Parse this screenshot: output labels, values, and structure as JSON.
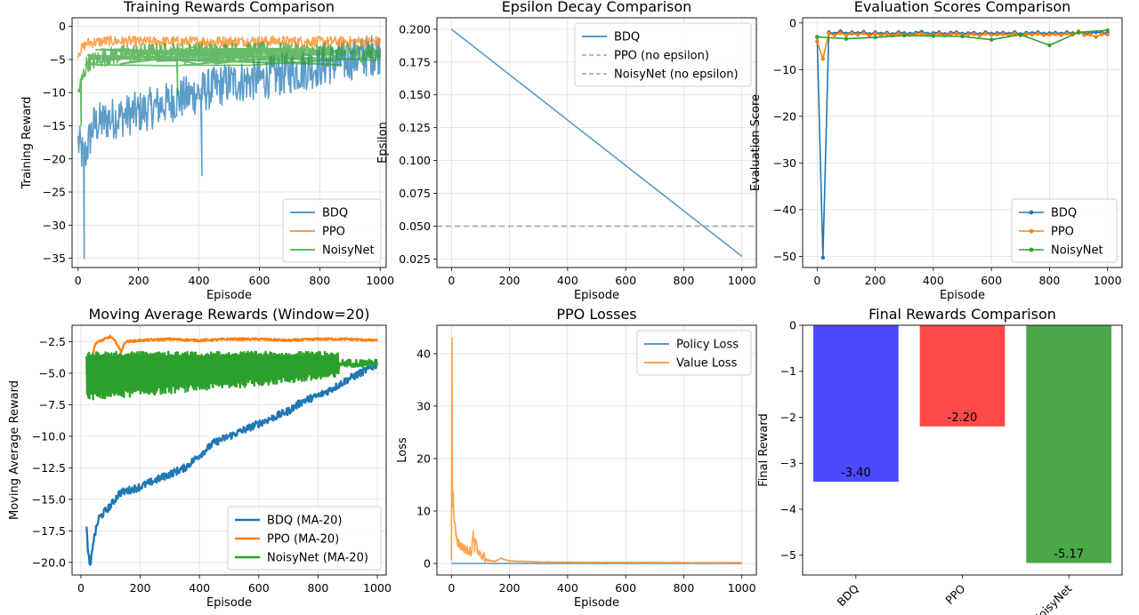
{
  "colors": {
    "blue": "#1f77b4",
    "orange": "#ff7f0e",
    "green": "#2ca02c",
    "gray": "#a0a0a0",
    "bar_blue": "#4a4aff",
    "bar_red": "#ff4a4a",
    "bar_green": "#4aa84a",
    "grid": "#e0e0e0"
  },
  "chart_data": [
    {
      "id": "training",
      "type": "line",
      "title": "Training Rewards Comparison",
      "xlabel": "Episode",
      "ylabel": "Training Reward",
      "xlim": [
        -20,
        1020
      ],
      "ylim": [
        -36.4,
        1.3
      ],
      "xticks": [
        0,
        200,
        400,
        600,
        800,
        1000
      ],
      "yticks": [
        0,
        -5,
        -10,
        -15,
        -20,
        -25,
        -30,
        -35
      ],
      "grid": true,
      "legend": "lower right",
      "series": [
        {
          "name": "BDQ",
          "color": "blue",
          "x": [
            0,
            20,
            50,
            100,
            150,
            200,
            300,
            400,
            500,
            600,
            700,
            800,
            900,
            1000
          ],
          "y": [
            -17.5,
            -20,
            -15,
            -14,
            -13.5,
            -13,
            -11.5,
            -10,
            -8.5,
            -8,
            -7,
            -6,
            -5,
            -4
          ],
          "noise": 3.2,
          "spikes": [
            [
              20,
              -35
            ],
            [
              410,
              -22.5
            ]
          ]
        },
        {
          "name": "PPO",
          "color": "orange",
          "x": [
            0,
            30,
            100,
            200,
            400,
            600,
            800,
            1000
          ],
          "y": [
            -4,
            -2.5,
            -2.2,
            -2.3,
            -2.3,
            -2.2,
            -2.3,
            -2.3
          ],
          "noise": 0.8,
          "spikes": []
        },
        {
          "name": "NoisyNet",
          "color": "green",
          "x": [
            0,
            30,
            100,
            200,
            400,
            600,
            800,
            1000
          ],
          "y": [
            -10,
            -5.5,
            -4.5,
            -4,
            -3.8,
            -3.8,
            -3.9,
            -4
          ],
          "noise": 1.4,
          "spikes": [
            [
              10,
              -15
            ],
            [
              330,
              -10.5
            ]
          ]
        }
      ]
    },
    {
      "id": "epsilon",
      "type": "line",
      "title": "Epsilon Decay Comparison",
      "xlabel": "Episode",
      "ylabel": "Epsilon",
      "xlim": [
        -50,
        1050
      ],
      "ylim": [
        0.0185,
        0.2087
      ],
      "xticks": [
        0,
        200,
        400,
        600,
        800,
        1000
      ],
      "yticks": [
        0.2,
        0.175,
        0.15,
        0.125,
        0.1,
        0.075,
        0.05,
        0.025
      ],
      "ytick_labels": [
        "0.200",
        "0.175",
        "0.150",
        "0.125",
        "0.100",
        "0.075",
        "0.050",
        "0.025"
      ],
      "grid": true,
      "legend": "upper right",
      "series": [
        {
          "name": "BDQ",
          "color": "blue",
          "x": [
            0,
            1000
          ],
          "y": [
            0.2,
            0.027
          ]
        },
        {
          "name": "PPO (no epsilon)",
          "color": "gray",
          "dashed": true,
          "x": [
            -50,
            1050
          ],
          "y": [
            0.05,
            0.05
          ]
        },
        {
          "name": "NoisyNet (no epsilon)",
          "color": "gray",
          "dashed": true,
          "x": [
            -50,
            1050
          ],
          "y": [
            0.05,
            0.05
          ]
        }
      ]
    },
    {
      "id": "evaluation",
      "type": "line",
      "title": "Evaluation Scores Comparison",
      "xlabel": "Episode",
      "ylabel": "Evaluation Score",
      "xlim": [
        -50,
        1050
      ],
      "ylim": [
        -52.4,
        1.1
      ],
      "xticks": [
        0,
        200,
        400,
        600,
        800,
        1000
      ],
      "yticks": [
        0,
        -10,
        -20,
        -30,
        -40,
        -50
      ],
      "grid": true,
      "legend": "lower right",
      "series": [
        {
          "name": "BDQ",
          "color": "blue",
          "x": [
            0,
            20,
            40,
            60,
            80,
            100,
            120,
            140,
            160,
            180,
            200,
            220,
            240,
            260,
            280,
            300,
            320,
            340,
            360,
            380,
            400,
            420,
            440,
            460,
            480,
            500,
            520,
            540,
            560,
            580,
            600,
            620,
            640,
            660,
            680,
            700,
            720,
            740,
            760,
            780,
            800,
            820,
            840,
            860,
            880,
            900,
            920,
            940,
            960,
            980,
            1000
          ],
          "y": [
            -3,
            -50.3,
            -2,
            -2.3,
            -1.8,
            -2.3,
            -2,
            -2.2,
            -1.9,
            -2.4,
            -2,
            -2.3,
            -2.1,
            -2.4,
            -2,
            -2.2,
            -2.3,
            -2.1,
            -1.9,
            -2.3,
            -2.2,
            -2,
            -2.4,
            -2.1,
            -2,
            -2.3,
            -2.2,
            -2.1,
            -2.4,
            -2,
            -2.3,
            -2.2,
            -2.1,
            -2.3,
            -2,
            -2.4,
            -2.1,
            -2.2,
            -2,
            -2.3,
            -2.2,
            -2.1,
            -2.3,
            -2,
            -2.2,
            -2.1,
            -2.3,
            -2.2,
            -2,
            -2.1,
            -2.2
          ]
        },
        {
          "name": "PPO",
          "color": "orange",
          "x": [
            0,
            20,
            40,
            60,
            80,
            100,
            120,
            140,
            160,
            180,
            200,
            220,
            240,
            260,
            280,
            300,
            320,
            340,
            360,
            380,
            400,
            420,
            440,
            460,
            480,
            500,
            520,
            540,
            560,
            580,
            600,
            620,
            640,
            660,
            680,
            700,
            720,
            740,
            760,
            780,
            800,
            820,
            840,
            860,
            880,
            900,
            920,
            940,
            960,
            980,
            1000
          ],
          "y": [
            -4,
            -7.7,
            -2.3,
            -2.6,
            -2.2,
            -2.6,
            -2.3,
            -2.5,
            -2.2,
            -2.7,
            -2.3,
            -2.6,
            -2.4,
            -2.7,
            -2.3,
            -2.5,
            -2.6,
            -2.4,
            -2.3,
            -2.6,
            -2.5,
            -2.3,
            -2.7,
            -2.4,
            -2.3,
            -2.6,
            -2.5,
            -2.4,
            -2.7,
            -2.3,
            -2.6,
            -2.5,
            -2.4,
            -2.6,
            -2.3,
            -2.7,
            -2.4,
            -2.5,
            -2.3,
            -2.6,
            -2.5,
            -2.4,
            -2.6,
            -2.3,
            -2.5,
            -1.8,
            -2.6,
            -2.5,
            -3,
            -2.4,
            -2.5
          ]
        },
        {
          "name": "NoisyNet",
          "color": "green",
          "x": [
            0,
            100,
            200,
            300,
            400,
            500,
            600,
            700,
            800,
            900,
            1000
          ],
          "y": [
            -3,
            -3.4,
            -3.1,
            -2.7,
            -2.8,
            -2.9,
            -3.6,
            -2.5,
            -4.8,
            -2,
            -1.6
          ]
        }
      ]
    },
    {
      "id": "moving_avg",
      "type": "line",
      "title": "Moving Average Rewards (Window=20)",
      "xlabel": "Episode",
      "ylabel": "Moving Average Reward",
      "xlim": [
        -30,
        1030
      ],
      "ylim": [
        -21.0,
        -1.2
      ],
      "xticks": [
        0,
        200,
        400,
        600,
        800,
        1000
      ],
      "yticks": [
        -2.5,
        -5.0,
        -7.5,
        -10.0,
        -12.5,
        -15.0,
        -17.5,
        -20.0
      ],
      "ytick_labels": [
        "−2.5",
        "−5.0",
        "−7.5",
        "−10.0",
        "−12.5",
        "−15.0",
        "−17.5",
        "−20.0"
      ],
      "grid": true,
      "legend": "lower right",
      "series": [
        {
          "name": "BDQ (MA-20)",
          "color": "blue",
          "x": [
            19,
            25,
            32,
            40,
            50,
            60,
            80,
            100,
            130,
            160,
            200,
            250,
            300,
            350,
            400,
            450,
            500,
            550,
            600,
            650,
            700,
            750,
            800,
            850,
            900,
            950,
            1000
          ],
          "y": [
            -17.4,
            -19.5,
            -20.5,
            -18.5,
            -17.5,
            -16.5,
            -16,
            -15.5,
            -14.5,
            -14.3,
            -14,
            -13.5,
            -13,
            -12.5,
            -11.5,
            -10.5,
            -10,
            -9.5,
            -9,
            -8.5,
            -8,
            -7.2,
            -6.8,
            -6.2,
            -5.5,
            -4.9,
            -4.3
          ],
          "noise": 0.3
        },
        {
          "name": "PPO (MA-20)",
          "color": "orange",
          "x": [
            19,
            30,
            50,
            80,
            100,
            120,
            135,
            150,
            200,
            300,
            400,
            500,
            600,
            700,
            800,
            900,
            1000
          ],
          "y": [
            -4.9,
            -4.3,
            -2.6,
            -2.3,
            -2.1,
            -2.6,
            -3.3,
            -2.5,
            -2.4,
            -2.3,
            -2.4,
            -2.3,
            -2.3,
            -2.4,
            -2.3,
            -2.3,
            -2.4
          ],
          "noise": 0.08
        },
        {
          "name": "NoisyNet (MA-20)",
          "color": "green",
          "x": [
            19,
            100,
            200,
            400,
            600,
            800,
            1000
          ],
          "y": [
            -5.5,
            -5.0,
            -4.8,
            -4.5,
            -4.3,
            -4.2,
            -4.1
          ],
          "band": [
            -7.2,
            -3.3
          ],
          "noise": 0.3
        }
      ]
    },
    {
      "id": "ppo_losses",
      "type": "line",
      "title": "PPO Losses",
      "xlabel": "Episode",
      "ylabel": "Loss",
      "xlim": [
        -50,
        1050
      ],
      "ylim": [
        -2.2,
        45.4
      ],
      "xticks": [
        0,
        200,
        400,
        600,
        800,
        1000
      ],
      "yticks": [
        0,
        10,
        20,
        30,
        40
      ],
      "grid": true,
      "legend": "upper right",
      "series": [
        {
          "name": "Policy Loss",
          "color": "blue",
          "x": [
            0,
            1000
          ],
          "y": [
            0,
            0
          ]
        },
        {
          "name": "Value Loss",
          "color": "orange",
          "x": [
            0,
            2,
            4,
            6,
            10,
            15,
            20,
            30,
            40,
            50,
            60,
            70,
            75,
            80,
            85,
            90,
            100,
            110,
            120,
            130,
            150,
            170,
            200,
            300,
            400,
            500,
            600,
            700,
            800,
            900,
            1000
          ],
          "y": [
            0.5,
            43,
            10,
            13,
            8,
            6,
            4,
            3.5,
            3,
            2.5,
            2.5,
            2.2,
            6.2,
            3,
            5,
            2,
            1.5,
            1.5,
            0.7,
            0.5,
            0.3,
            0.9,
            0.4,
            0.2,
            0.15,
            0.1,
            0.1,
            0.1,
            0.05,
            0.05,
            0.05
          ],
          "noise": 0.6
        }
      ]
    },
    {
      "id": "final_rewards",
      "type": "bar",
      "title": "Final Rewards Comparison",
      "xlabel": "",
      "ylabel": "Final Reward",
      "ylim": [
        -5.43,
        0
      ],
      "yticks": [
        0,
        -1,
        -2,
        -3,
        -4,
        -5
      ],
      "grid": false,
      "categories": [
        "BDQ",
        "PPO",
        "NoisyNet"
      ],
      "values": [
        -3.4,
        -2.2,
        -5.17
      ],
      "value_labels": [
        "-3.40",
        "-2.20",
        "-5.17"
      ],
      "bar_colors": [
        "bar_blue",
        "bar_red",
        "bar_green"
      ]
    }
  ]
}
